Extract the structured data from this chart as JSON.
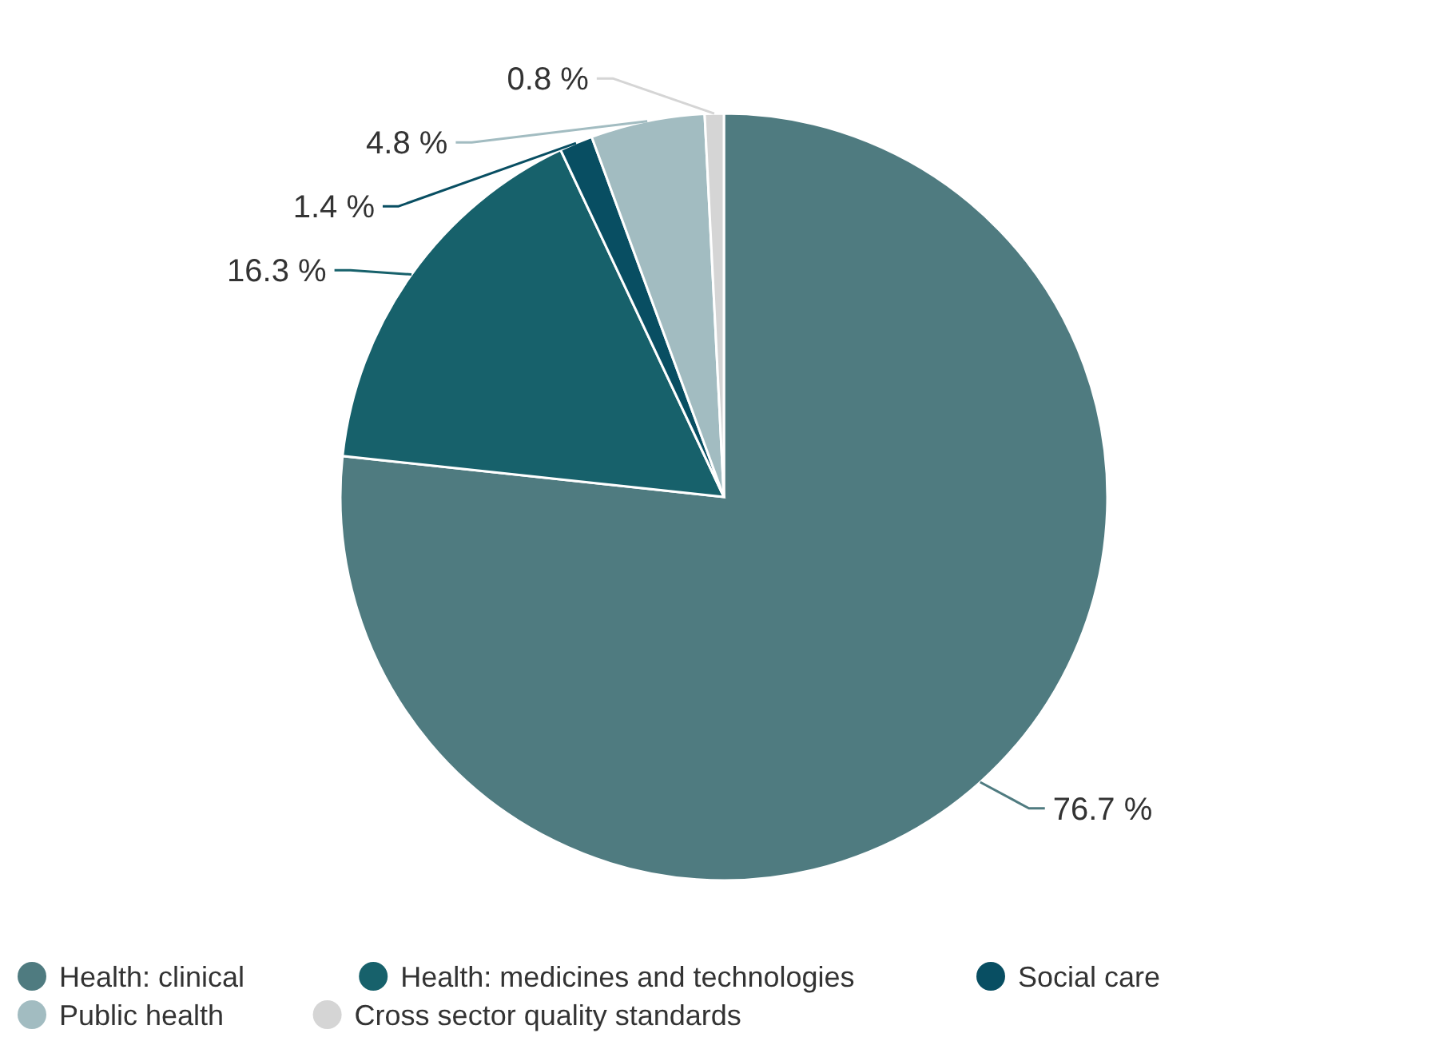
{
  "chart_data": {
    "type": "pie",
    "categories": [
      "Health: clinical",
      "Health: medicines and technologies",
      "Social care",
      "Public health",
      "Cross sector quality standards"
    ],
    "values": [
      76.7,
      16.3,
      1.4,
      4.8,
      0.8
    ],
    "colors": [
      "#4f7b80",
      "#17616b",
      "#084e62",
      "#a2bcc1",
      "#d5d5d5"
    ],
    "value_labels": [
      "76.7 %",
      "16.3 %",
      "1.4 %",
      "4.8 %",
      "0.8 %"
    ],
    "legend": "bottom"
  }
}
